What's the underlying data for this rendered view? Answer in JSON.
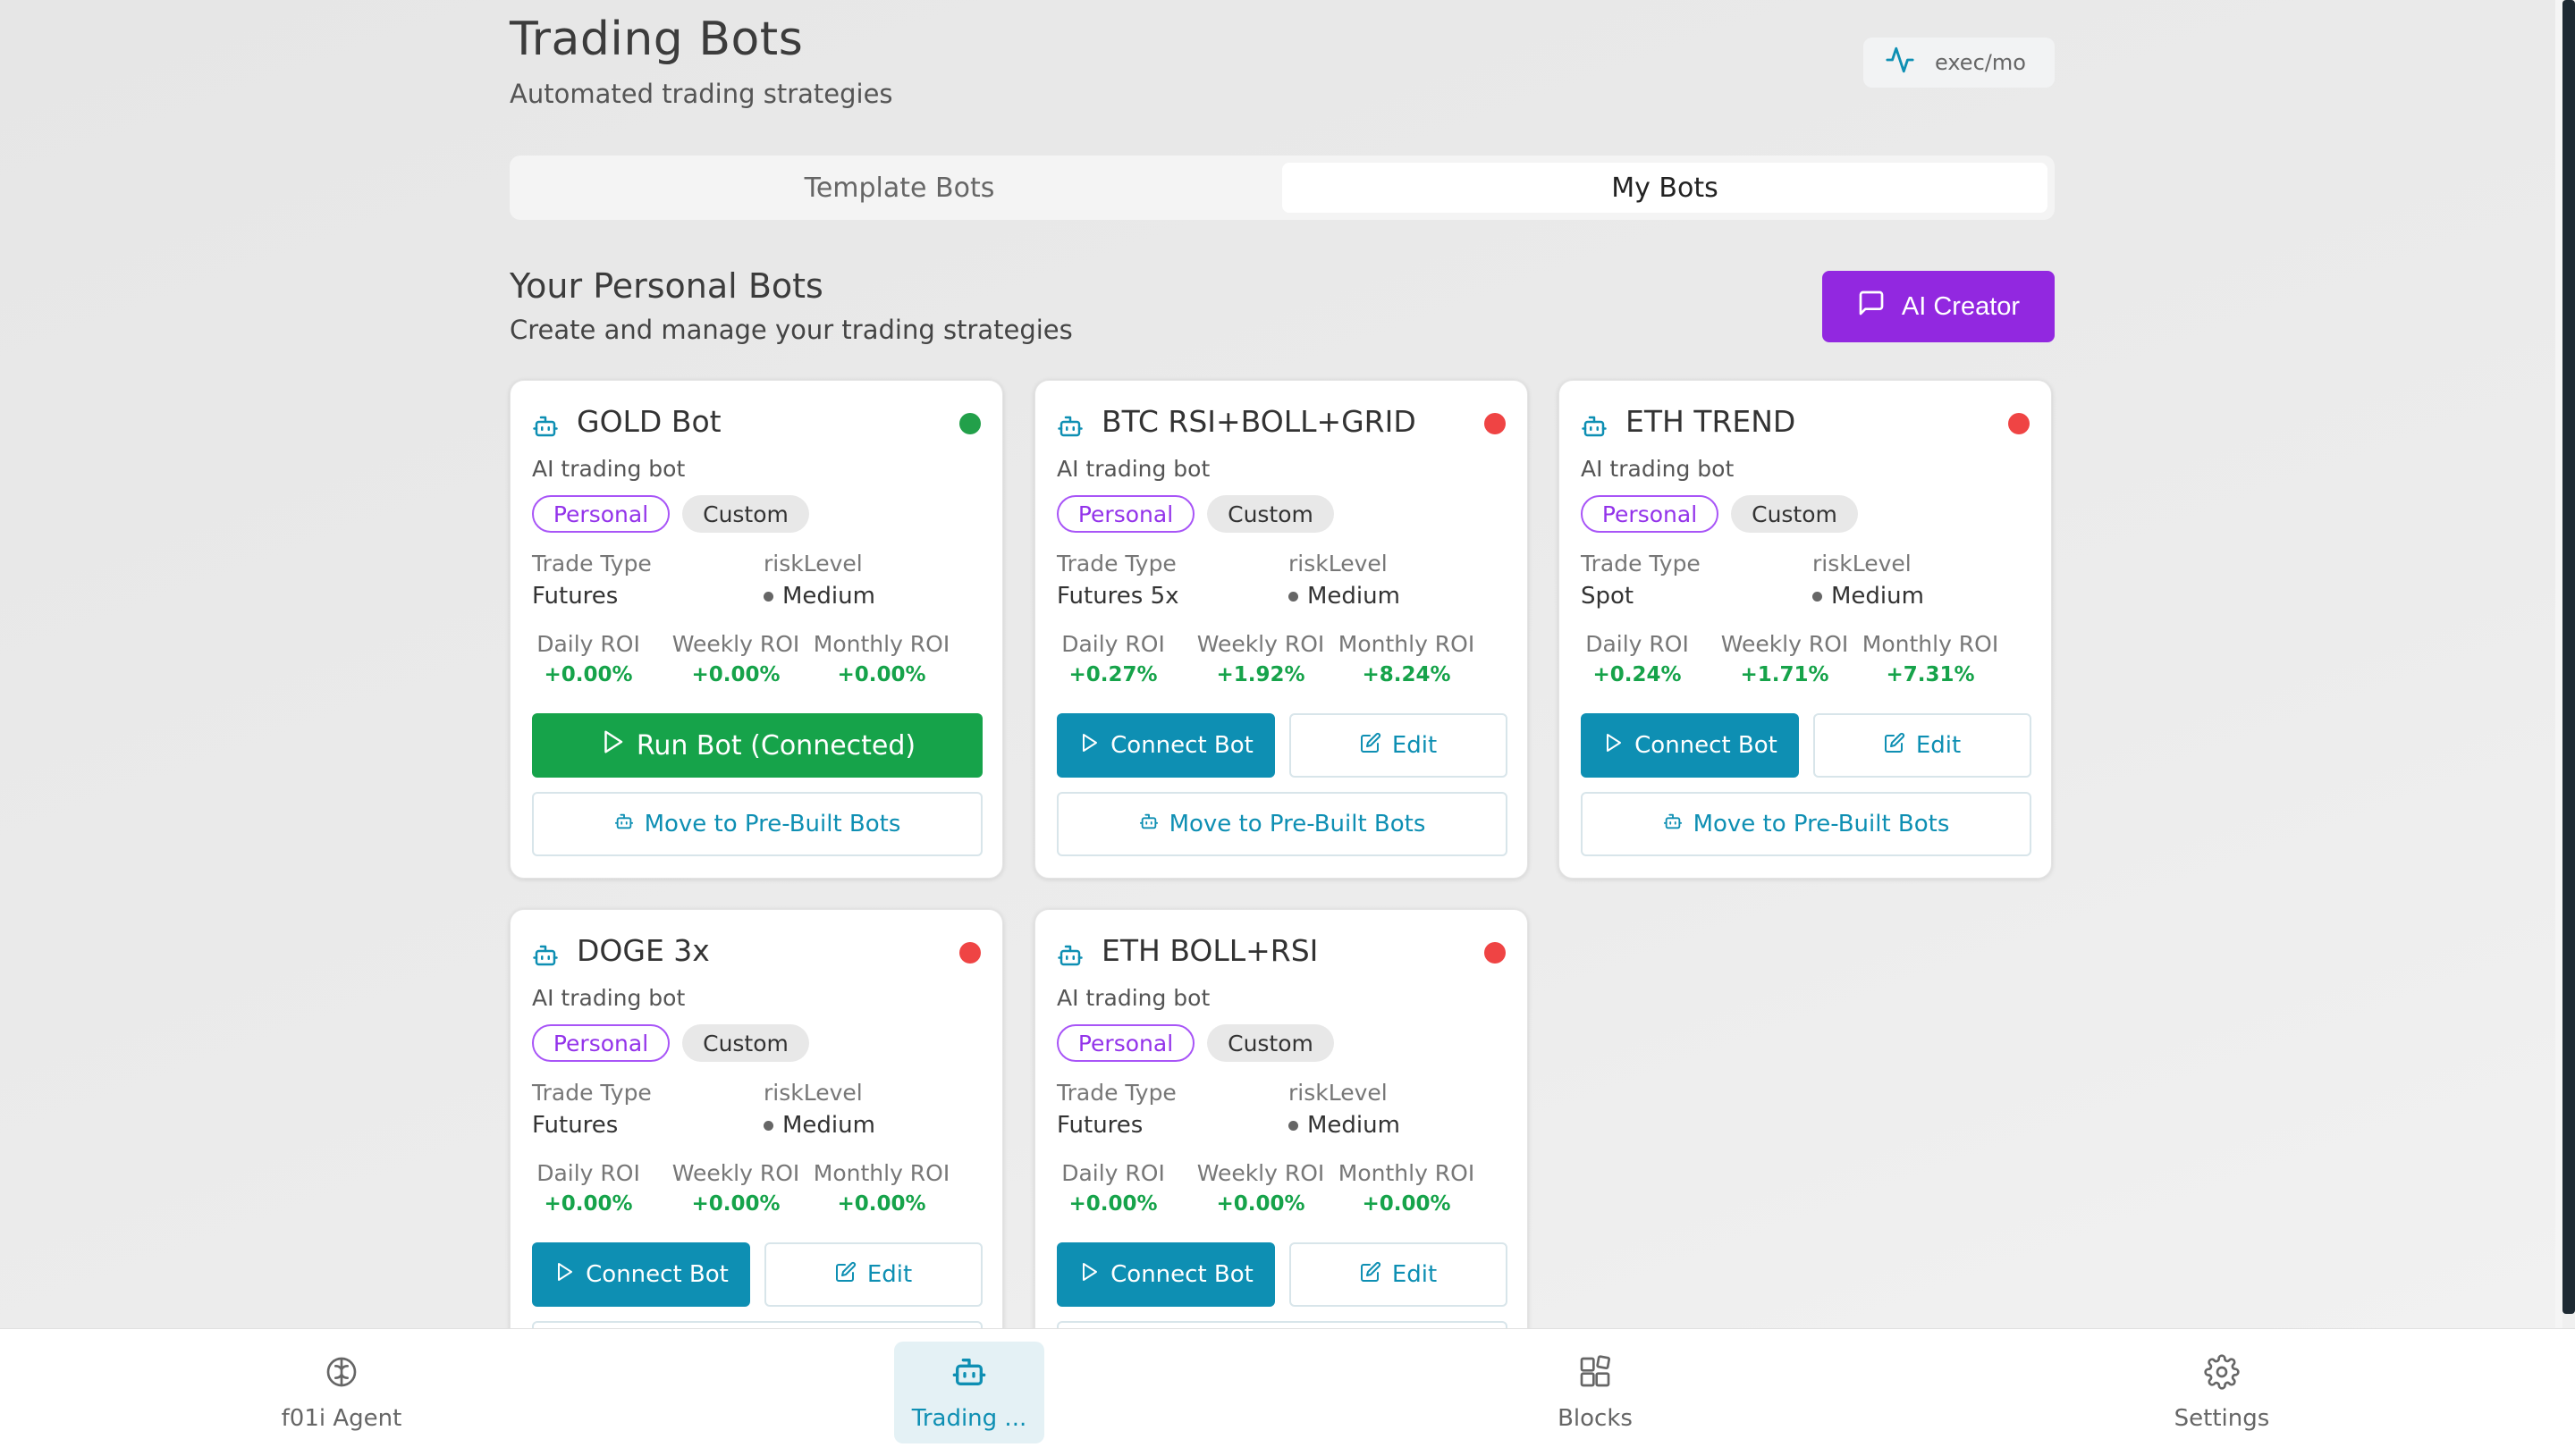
{
  "header": {
    "title": "Trading Bots",
    "subtitle": "Automated trading strategies",
    "exec_label": "exec/mo"
  },
  "tabs": [
    {
      "label": "Template Bots",
      "active": false
    },
    {
      "label": "My Bots",
      "active": true
    }
  ],
  "section": {
    "title": "Your Personal Bots",
    "subtitle": "Create and manage your trading strategies",
    "ai_creator_label": "AI Creator"
  },
  "labels": {
    "trade_type": "Trade Type",
    "risk_level": "riskLevel",
    "daily_roi": "Daily ROI",
    "weekly_roi": "Weekly ROI",
    "monthly_roi": "Monthly ROI",
    "personal": "Personal",
    "custom": "Custom",
    "run_connected": "Run Bot (Connected)",
    "connect": "Connect Bot",
    "edit": "Edit",
    "move": "Move to Pre-Built Bots"
  },
  "bots": [
    {
      "name": "GOLD Bot",
      "description": "AI trading bot",
      "status": "connected",
      "status_color": "#22a04a",
      "trade_type": "Futures",
      "risk_level": "Medium",
      "daily_roi": "+0.00%",
      "weekly_roi": "+0.00%",
      "monthly_roi": "+0.00%"
    },
    {
      "name": "BTC RSI+BOLL+GRID",
      "description": "AI trading bot",
      "status": "disconnected",
      "status_color": "#ef4444",
      "trade_type": "Futures 5x",
      "risk_level": "Medium",
      "daily_roi": "+0.27%",
      "weekly_roi": "+1.92%",
      "monthly_roi": "+8.24%"
    },
    {
      "name": "ETH TREND",
      "description": "AI trading bot",
      "status": "disconnected",
      "status_color": "#ef4444",
      "trade_type": "Spot",
      "risk_level": "Medium",
      "daily_roi": "+0.24%",
      "weekly_roi": "+1.71%",
      "monthly_roi": "+7.31%"
    },
    {
      "name": "DOGE 3x",
      "description": "AI trading bot",
      "status": "disconnected",
      "status_color": "#ef4444",
      "trade_type": "Futures",
      "risk_level": "Medium",
      "daily_roi": "+0.00%",
      "weekly_roi": "+0.00%",
      "monthly_roi": "+0.00%"
    },
    {
      "name": "ETH BOLL+RSI",
      "description": "AI trading bot",
      "status": "disconnected",
      "status_color": "#ef4444",
      "trade_type": "Futures",
      "risk_level": "Medium",
      "daily_roi": "+0.00%",
      "weekly_roi": "+0.00%",
      "monthly_roi": "+0.00%"
    }
  ],
  "nav": [
    {
      "label": "f01i Agent",
      "icon": "brain-icon",
      "active": false
    },
    {
      "label": "Trading ...",
      "icon": "bot-icon",
      "active": true
    },
    {
      "label": "Blocks",
      "icon": "blocks-icon",
      "active": false
    },
    {
      "label": "Settings",
      "icon": "gear-icon",
      "active": false
    }
  ],
  "colors": {
    "accent": "#0e8fb3",
    "purple": "#9228e0",
    "green": "#16a34a",
    "red": "#ef4444"
  }
}
